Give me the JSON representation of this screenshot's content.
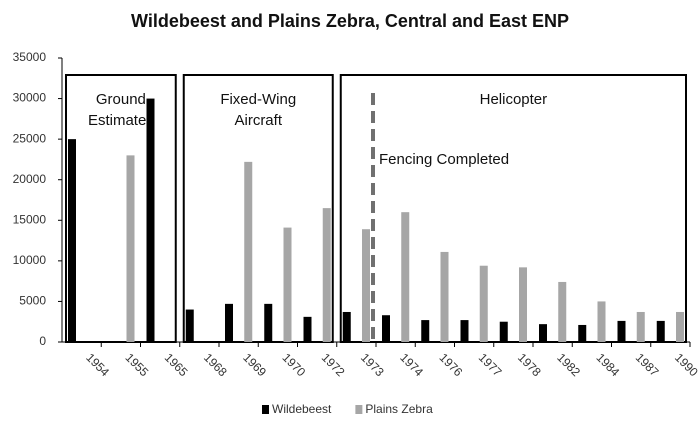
{
  "chart_data": {
    "type": "bar",
    "title": "Wildebeest and Plains Zebra, Central and East ENP",
    "categories": [
      "1954",
      "1955",
      "1965",
      "1968",
      "1969",
      "1970",
      "1972",
      "1973",
      "1974",
      "1976",
      "1977",
      "1978",
      "1982",
      "1984",
      "1987",
      "1990"
    ],
    "series": [
      {
        "name": "Wildebeest",
        "color": "#000000",
        "values": [
          25000,
          null,
          30000,
          4000,
          4700,
          4700,
          3100,
          3700,
          3300,
          2700,
          2700,
          2500,
          2200,
          2100,
          2600,
          2600
        ]
      },
      {
        "name": "Plains Zebra",
        "color": "#a6a6a6",
        "values": [
          null,
          23000,
          null,
          null,
          22200,
          14100,
          16500,
          13900,
          16000,
          11100,
          9400,
          9200,
          7400,
          5000,
          3700,
          3700
        ]
      }
    ],
    "ylim": [
      0,
      35000
    ],
    "yticks": [
      0,
      5000,
      10000,
      15000,
      20000,
      25000,
      30000,
      35000
    ],
    "grid": false,
    "legend": "bottom",
    "groups": [
      {
        "lines": [
          "Ground",
          "Estimates"
        ]
      },
      {
        "lines": [
          "Fixed-Wing",
          "Aircraft"
        ]
      },
      {
        "lines": [
          "Helicopter"
        ]
      }
    ],
    "annotation": "Fencing Completed"
  }
}
